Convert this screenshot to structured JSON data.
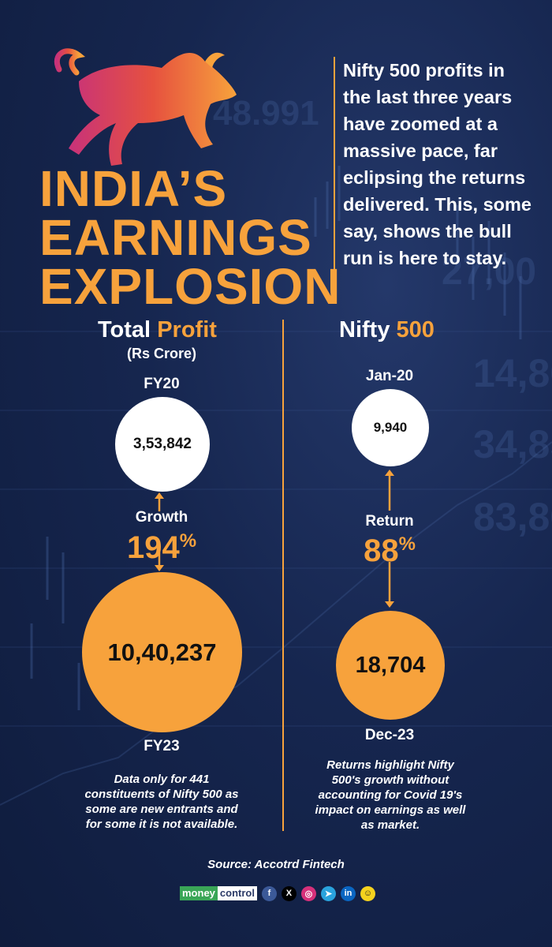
{
  "header": {
    "title_lines": [
      "INDIA’S",
      "EARNINGS",
      "EXPLOSION"
    ],
    "intro": "Nifty 500 profits in the last three years have zoomed at a massive pace, far eclipsing the returns delivered. This, some say, shows the bull run is here to stay."
  },
  "left": {
    "title_main": "Total",
    "title_accent": "Profit",
    "unit": "(Rs Crore)",
    "top_label": "FY20",
    "top_value": "3,53,842",
    "change_label": "Growth",
    "change_value": "194",
    "change_symbol": "%",
    "bottom_value": "10,40,237",
    "bottom_label": "FY23",
    "note": "Data only for 441 constituents of Nifty 500 as some are new entrants and for some it is not available."
  },
  "right": {
    "title_main": "Nifty",
    "title_accent": "500",
    "top_label": "Jan-20",
    "top_value": "9,940",
    "change_label": "Return",
    "change_value": "88",
    "change_symbol": "%",
    "bottom_value": "18,704",
    "bottom_label": "Dec-23",
    "note": "Returns highlight Nifty 500's growth without accounting for Covid 19's impact on earnings as well as market."
  },
  "footer": {
    "source": "Source: Accotrd Fintech",
    "brand_part1": "money",
    "brand_part2": "control",
    "social_icons": [
      "facebook-icon",
      "x-icon",
      "instagram-icon",
      "telegram-icon",
      "linkedin-icon",
      "snapchat-icon"
    ],
    "social_glyphs": [
      "f",
      "X",
      "◎",
      "➤",
      "in",
      "☺"
    ]
  },
  "colors": {
    "background": "#16264f",
    "accent": "#f7a23c",
    "white": "#ffffff",
    "brand_green": "#3aa657"
  }
}
